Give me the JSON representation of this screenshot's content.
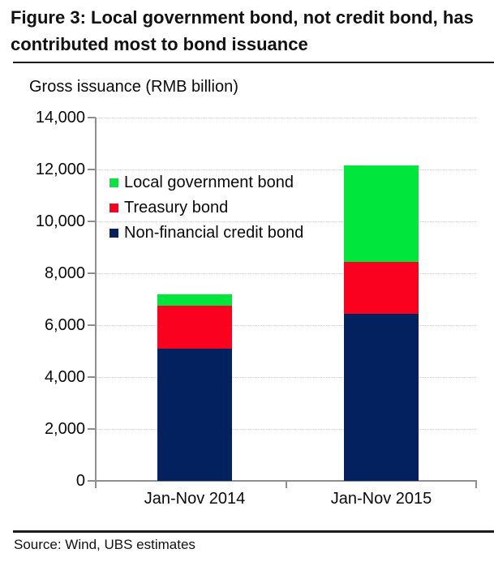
{
  "header": {
    "title_line1": "Figure 3: Local government bond, not credit bond, has",
    "title_line2": "contributed most to bond issuance"
  },
  "footer": {
    "source": "Source: Wind, UBS estimates"
  },
  "chart_data": {
    "type": "bar",
    "stacked": true,
    "title": "Figure 3: Local government bond, not credit bond, has contributed most to bond issuance",
    "axis_title": "Gross issuance (RMB billion)",
    "categories": [
      "Jan-Nov 2014",
      "Jan-Nov 2015"
    ],
    "series": [
      {
        "name": "Non-financial credit bond",
        "color": "#03215F",
        "values": [
          5100,
          6450
        ]
      },
      {
        "name": "Treasury bond",
        "color": "#FB0120",
        "values": [
          1650,
          1980
        ]
      },
      {
        "name": "Local government bond",
        "color": "#00E63C",
        "values": [
          450,
          3720
        ]
      }
    ],
    "approx_totals": [
      7200,
      12150
    ],
    "legend_order": [
      "Local government bond",
      "Treasury bond",
      "Non-financial credit bond"
    ],
    "legend_position": "upper-left-inside",
    "ylim": [
      0,
      14000
    ],
    "ytick_step": 2000,
    "ytick_labels": [
      "0",
      "2,000",
      "4,000",
      "6,000",
      "8,000",
      "10,000",
      "12,000",
      "14,000"
    ],
    "grid": true,
    "gridline_style": "dotted",
    "colors": {
      "grid": "#D2D2D2",
      "axis": "#8F8F8F",
      "title_text": "#111111",
      "body_text": "#0A0A0A"
    }
  }
}
